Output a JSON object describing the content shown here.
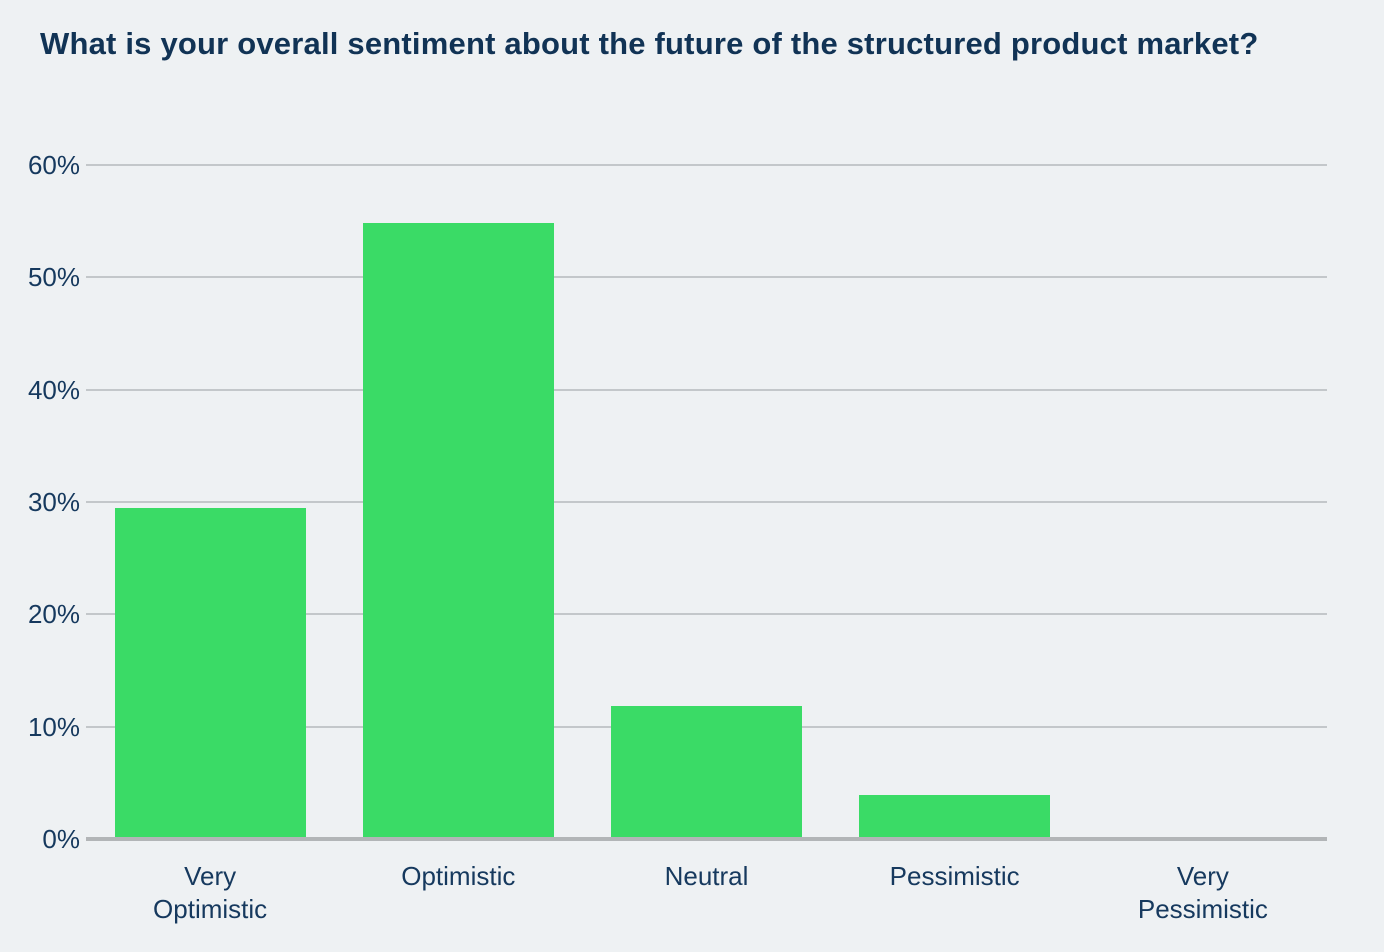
{
  "title": "What is your overall sentiment about the future of the structured product market?",
  "colors": {
    "background": "#eef1f3",
    "title_text": "#113355",
    "label_text": "#16395e",
    "bar": "#3adb66",
    "gridline": "#c3c7ca",
    "axis_line": "#b2b5b7"
  },
  "chart_data": {
    "type": "bar",
    "title": "What is your overall sentiment about the future of the structured product market?",
    "categories": [
      "Very Optimistic",
      "Optimistic",
      "Neutral",
      "Pessimistic",
      "Very Pessimistic"
    ],
    "values": [
      29.5,
      54.8,
      11.8,
      3.9,
      0
    ],
    "value_unit": "%",
    "xlabel": "",
    "ylabel": "",
    "ylim": [
      0,
      60
    ],
    "ytick_step": 10,
    "ytick_labels": [
      "0%",
      "10%",
      "20%",
      "30%",
      "40%",
      "50%",
      "60%"
    ],
    "grid": true,
    "legend": false,
    "bar_color": "#3adb66"
  }
}
